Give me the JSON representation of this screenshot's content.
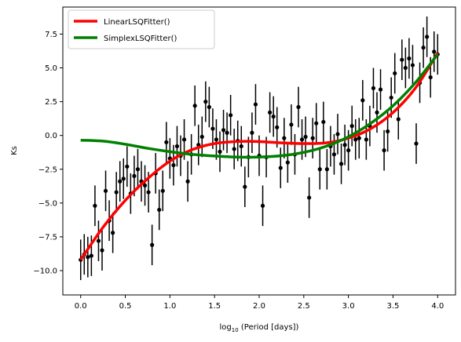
{
  "chart_data": {
    "type": "scatter",
    "title": "",
    "xlabel": "log10 (Period [days])",
    "xlabel_base": "log",
    "xlabel_sub": "10",
    "xlabel_rest": " (Period [days])",
    "ylabel": "Ks",
    "xlim": [
      -0.2,
      4.2
    ],
    "ylim": [
      -11.8,
      9.5
    ],
    "xticks": [
      0.0,
      0.5,
      1.0,
      1.5,
      2.0,
      2.5,
      3.0,
      3.5,
      4.0
    ],
    "xtick_labels": [
      "0.0",
      "0.5",
      "1.0",
      "1.5",
      "2.0",
      "2.5",
      "3.0",
      "3.5",
      "4.0"
    ],
    "yticks": [
      7.5,
      5.0,
      2.5,
      0.0,
      -2.5,
      -5.0,
      -7.5,
      -10.0
    ],
    "ytick_labels": [
      "7.5",
      "5.0",
      "2.5",
      "0.0",
      "−2.5",
      "−5.0",
      "−7.5",
      "−10.0"
    ],
    "grid": false,
    "legend_position": "top-left",
    "series": [
      {
        "name": "LinearLSQFitter()",
        "kind": "line",
        "color": "#ff0000",
        "x": [
          0.0,
          0.25,
          0.5,
          0.75,
          1.0,
          1.25,
          1.5,
          1.75,
          2.0,
          2.25,
          2.5,
          2.75,
          3.0,
          3.25,
          3.5,
          3.75,
          4.0
        ],
        "y": [
          -9.2,
          -6.8,
          -4.8,
          -3.2,
          -1.9,
          -1.05,
          -0.6,
          -0.45,
          -0.45,
          -0.55,
          -0.6,
          -0.55,
          -0.2,
          0.5,
          1.7,
          3.5,
          6.1
        ]
      },
      {
        "name": "SimplexLSQFitter()",
        "kind": "line",
        "color": "#008000",
        "x": [
          0.0,
          0.25,
          0.5,
          0.75,
          1.0,
          1.25,
          1.5,
          1.75,
          2.0,
          2.25,
          2.5,
          2.75,
          3.0,
          3.25,
          3.5,
          3.75,
          4.0
        ],
        "y": [
          -0.35,
          -0.42,
          -0.65,
          -0.95,
          -1.2,
          -1.4,
          -1.52,
          -1.6,
          -1.6,
          -1.5,
          -1.25,
          -0.8,
          -0.1,
          0.9,
          2.2,
          3.9,
          6.0
        ]
      },
      {
        "name": "",
        "kind": "errorbar",
        "color": "#000000",
        "x": [
          0.0,
          0.04,
          0.08,
          0.12,
          0.16,
          0.2,
          0.24,
          0.28,
          0.32,
          0.36,
          0.4,
          0.44,
          0.48,
          0.52,
          0.56,
          0.6,
          0.64,
          0.68,
          0.72,
          0.76,
          0.8,
          0.84,
          0.88,
          0.92,
          0.96,
          1.0,
          1.04,
          1.08,
          1.12,
          1.16,
          1.2,
          1.24,
          1.28,
          1.32,
          1.36,
          1.4,
          1.44,
          1.48,
          1.52,
          1.56,
          1.6,
          1.64,
          1.68,
          1.72,
          1.76,
          1.8,
          1.84,
          1.88,
          1.92,
          1.96,
          2.0,
          2.04,
          2.08,
          2.12,
          2.16,
          2.2,
          2.24,
          2.28,
          2.32,
          2.36,
          2.4,
          2.44,
          2.48,
          2.52,
          2.56,
          2.6,
          2.64,
          2.68,
          2.72,
          2.76,
          2.8,
          2.84,
          2.88,
          2.92,
          2.96,
          3.0,
          3.04,
          3.08,
          3.12,
          3.16,
          3.2,
          3.24,
          3.28,
          3.32,
          3.36,
          3.4,
          3.44,
          3.48,
          3.52,
          3.56,
          3.6,
          3.64,
          3.68,
          3.72,
          3.76,
          3.8,
          3.84,
          3.88,
          3.92,
          3.96,
          4.0
        ],
        "y": [
          -9.2,
          -8.8,
          -9.0,
          -8.9,
          -5.2,
          -7.8,
          -8.5,
          -4.1,
          -6.3,
          -7.2,
          -4.2,
          -3.4,
          -3.2,
          -2.3,
          -4.3,
          -3.0,
          -2.5,
          -3.4,
          -3.7,
          -4.2,
          -8.1,
          -2.8,
          -5.5,
          -4.1,
          -0.5,
          -1.7,
          -2.2,
          -0.8,
          -1.5,
          -0.3,
          -3.4,
          -1.4,
          2.2,
          -0.7,
          -0.1,
          2.5,
          2.1,
          0.5,
          -0.3,
          -1.2,
          0.4,
          0.2,
          1.5,
          -1.0,
          -0.4,
          -0.8,
          -3.8,
          -1.6,
          0.2,
          2.3,
          -1.5,
          -5.2,
          -1.6,
          1.7,
          1.4,
          0.6,
          -2.4,
          -0.2,
          -2.0,
          0.8,
          -1.4,
          2.1,
          -0.3,
          -0.1,
          -4.6,
          -0.2,
          0.9,
          -2.5,
          1.0,
          -2.5,
          -0.8,
          -1.4,
          0.1,
          -2.1,
          -0.7,
          -1.1,
          0.7,
          -0.3,
          -0.2,
          2.6,
          -0.3,
          0.7,
          3.5,
          1.7,
          3.4,
          -1.1,
          0.3,
          2.8,
          4.6,
          1.2,
          5.6,
          5.0,
          5.7,
          5.2,
          -0.6,
          3.9,
          6.5,
          7.3,
          4.3,
          6.2,
          6.0
        ],
        "yerr": 1.5
      }
    ]
  }
}
